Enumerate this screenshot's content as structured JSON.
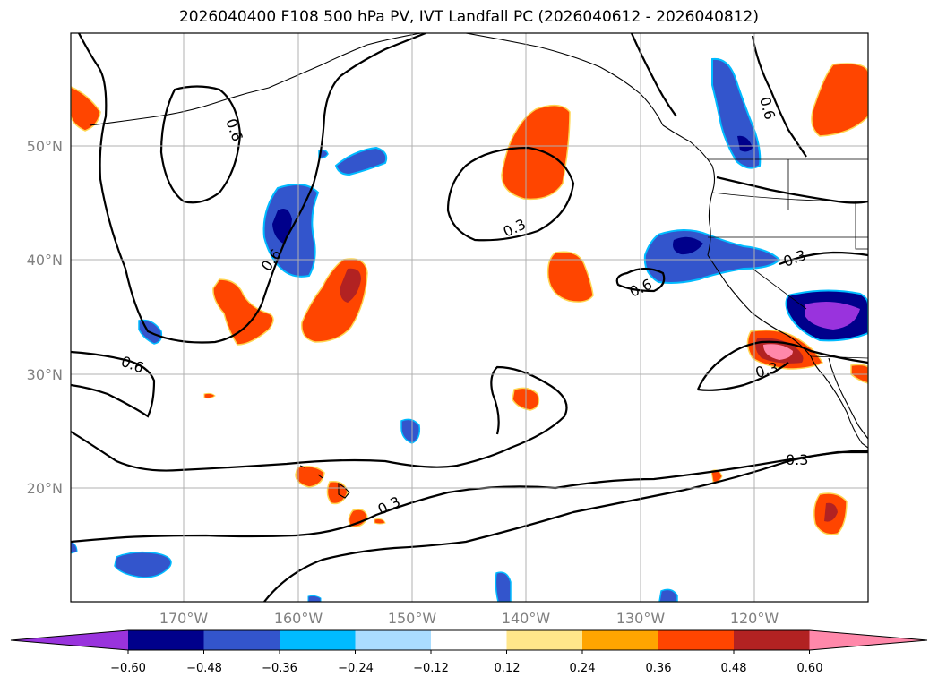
{
  "title": "2026040400 F108 500 hPa PV, IVT Landfall PC (2026040612 - 2026040812)",
  "lat_labels": [
    "50°N",
    "40°N",
    "30°N",
    "20°N"
  ],
  "lon_labels": [
    "170°W",
    "160°W",
    "150°W",
    "140°W",
    "130°W",
    "120°W"
  ],
  "contour_labels": [
    "0.6",
    "0.3",
    "0.6",
    "0.6",
    "0.6",
    "0.3",
    "0.6",
    "0.3",
    "0.3",
    "0.3"
  ],
  "colorbar": {
    "ticks": [
      "−0.60",
      "−0.48",
      "−0.36",
      "−0.24",
      "−0.12",
      "0.12",
      "0.24",
      "0.36",
      "0.48",
      "0.60"
    ],
    "colors": [
      "#9933dd",
      "#00008b",
      "#3355cc",
      "#00bbff",
      "#aaddff",
      "#ffffff",
      "#ffe68a",
      "#ffa500",
      "#ff4500",
      "#b22222",
      "#ff88aa"
    ]
  },
  "palette": {
    "neg_strong": "#00008b",
    "neg_mid": "#3355cc",
    "neg_light": "#00bbff",
    "neg_extreme": "#9933dd",
    "pos_light": "#ffe68a",
    "pos_mid": "#ff4500",
    "pos_strong": "#b22222",
    "pos_extreme": "#ff88aa"
  }
}
